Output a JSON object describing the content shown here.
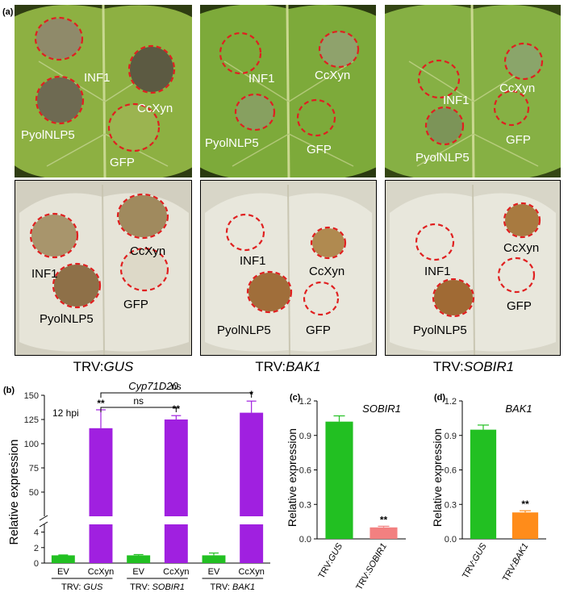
{
  "panel_a": {
    "letter": "(a)",
    "columns": [
      {
        "condition_prefix": "TRV:",
        "condition_gene": "GUS",
        "top_labels": [
          "INF1",
          "CcXyn",
          "PyolNLP5",
          "GFP"
        ],
        "bottom_labels": [
          "INF1",
          "CcXyn",
          "PyolNLP5",
          "GFP"
        ]
      },
      {
        "condition_prefix": "TRV:",
        "condition_gene": "BAK1",
        "top_labels": [
          "INF1",
          "CcXyn",
          "PyolNLP5",
          "GFP"
        ],
        "bottom_labels": [
          "INF1",
          "CcXyn",
          "PyolNLP5",
          "GFP"
        ]
      },
      {
        "condition_prefix": "TRV:",
        "condition_gene": "SOBIR1",
        "top_labels": [
          "INF1",
          "CcXyn",
          "PyolNLP5",
          "GFP"
        ],
        "bottom_labels": [
          "INF1",
          "CcXyn",
          "PyolNLP5",
          "GFP"
        ]
      }
    ],
    "colors": {
      "leaf_dark": "#2f3d12",
      "leaf_green": "#7fa83a",
      "cleared_leaf": "#e4e2d4",
      "circle_red": "#e02020",
      "lesion_brown": "#8a6a3a"
    }
  },
  "chart_data": [
    {
      "panel": "(b)",
      "type": "bar",
      "title": "Cyp71D20",
      "ylabel": "Relative expression",
      "annotation": "12 hpi",
      "axis_break": true,
      "ylim_lower": [
        0,
        5
      ],
      "ylim_upper": [
        25,
        150
      ],
      "yticks_lower": [
        "0",
        "2",
        "4"
      ],
      "yticks_upper": [
        "50",
        "75",
        "100",
        "125",
        "150"
      ],
      "categories": [
        "EV",
        "CcXyn",
        "EV",
        "CcXyn",
        "EV",
        "CcXyn"
      ],
      "groups": [
        {
          "label_prefix": "TRV: ",
          "label_gene": "GUS"
        },
        {
          "label_prefix": "TRV: ",
          "label_gene": "SOBIR1"
        },
        {
          "label_prefix": "TRV: ",
          "label_gene": "BAK1"
        }
      ],
      "values": [
        1.0,
        116,
        1.0,
        125,
        1.0,
        132
      ],
      "errors": [
        0.05,
        19,
        0.1,
        4,
        0.3,
        12
      ],
      "colors": [
        "#22c022",
        "#a020e0",
        "#22c022",
        "#a020e0",
        "#22c022",
        "#a020e0"
      ],
      "bar_labels": [
        "",
        "**",
        "",
        "**",
        "",
        "*"
      ],
      "comparisons": [
        {
          "label": "ns",
          "from": 1,
          "to": 3
        },
        {
          "label": "ns",
          "from": 1,
          "to": 5
        }
      ]
    },
    {
      "panel": "(c)",
      "type": "bar",
      "title": "SOBIR1",
      "ylabel": "Relative expression",
      "ylim": [
        0,
        1.2
      ],
      "yticks": [
        "0.0",
        "0.3",
        "0.6",
        "0.9",
        "1.2"
      ],
      "categories_prefix": [
        "TRV:",
        "TRV:"
      ],
      "categories_gene": [
        "GUS",
        "SOBIR1"
      ],
      "values": [
        1.02,
        0.1
      ],
      "errors": [
        0.05,
        0.01
      ],
      "colors": [
        "#22c022",
        "#f28080"
      ],
      "bar_labels": [
        "",
        "**"
      ]
    },
    {
      "panel": "(d)",
      "type": "bar",
      "title": "BAK1",
      "ylabel": "Relative expression",
      "ylim": [
        0,
        1.2
      ],
      "yticks": [
        "0.0",
        "0.3",
        "0.6",
        "0.9",
        "1.2"
      ],
      "categories_prefix": [
        "TRV:",
        "TRV:"
      ],
      "categories_gene": [
        "GUS",
        "BAK1"
      ],
      "values": [
        0.95,
        0.23
      ],
      "errors": [
        0.04,
        0.015
      ],
      "colors": [
        "#22c022",
        "#ff8c1a"
      ],
      "bar_labels": [
        "",
        "**"
      ]
    }
  ]
}
